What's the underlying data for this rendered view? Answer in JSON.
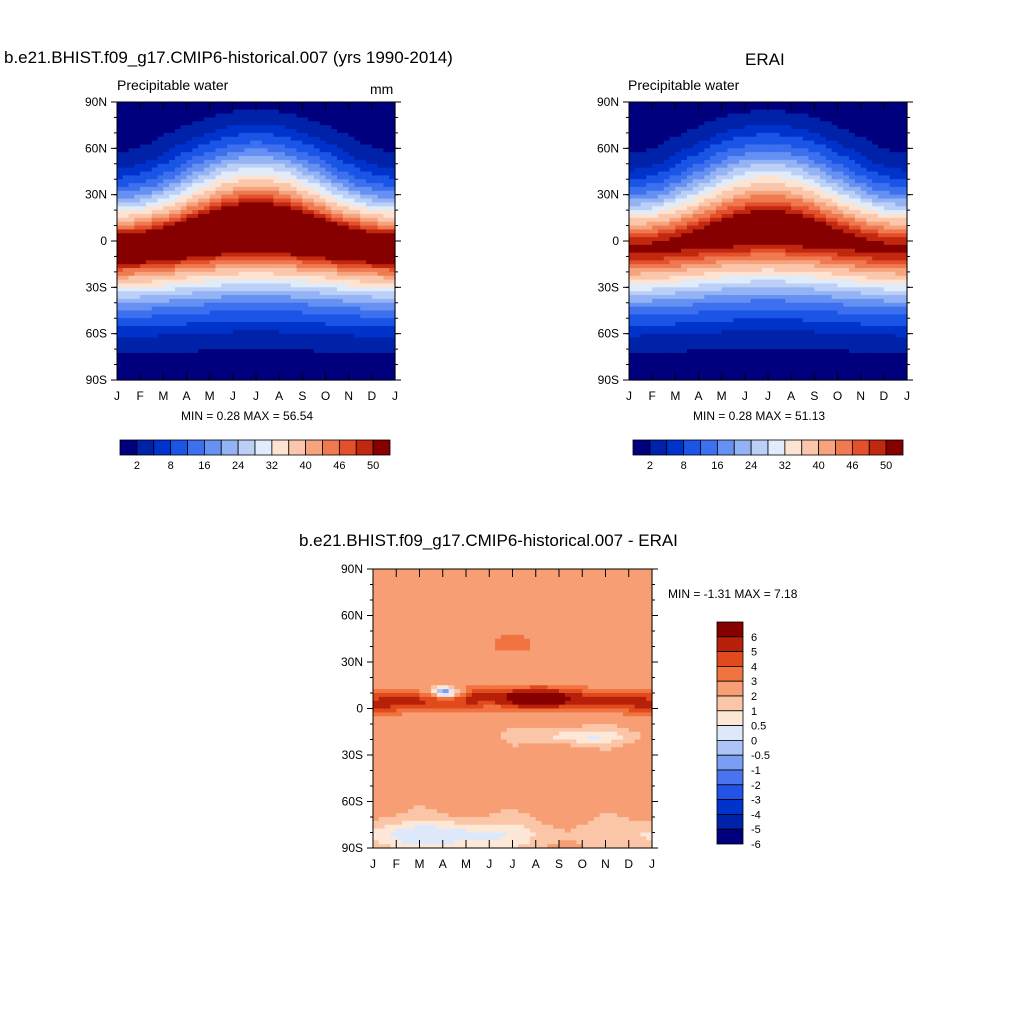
{
  "chart_data": [
    {
      "type": "heatmap",
      "title": "b.e21.BHIST.f09_g17.CMIP6-historical.007 (yrs 1990-2014)",
      "subtitle": "Precipitable water",
      "units": "mm",
      "x": [
        "J",
        "F",
        "M",
        "A",
        "M",
        "J",
        "J",
        "A",
        "S",
        "O",
        "N",
        "D",
        "J"
      ],
      "y_ticks": [
        "90N",
        "60N",
        "30N",
        "0",
        "30S",
        "60S",
        "90S"
      ],
      "ylim": [
        -90,
        90
      ],
      "stats": "MIN =   0.28 MAX =  56.54",
      "min": 0.28,
      "max": 56.54,
      "colorbar": {
        "orientation": "horizontal",
        "labels": [
          "2",
          "8",
          "16",
          "24",
          "32",
          "40",
          "46",
          "50"
        ]
      }
    },
    {
      "type": "heatmap",
      "title": "ERAI",
      "subtitle": "Precipitable water",
      "x": [
        "J",
        "F",
        "M",
        "A",
        "M",
        "J",
        "J",
        "A",
        "S",
        "O",
        "N",
        "D",
        "J"
      ],
      "y_ticks": [
        "90N",
        "60N",
        "30N",
        "0",
        "30S",
        "60S",
        "90S"
      ],
      "ylim": [
        -90,
        90
      ],
      "stats": "MIN =   0.28 MAX =  51.13",
      "min": 0.28,
      "max": 51.13,
      "colorbar": {
        "orientation": "horizontal",
        "labels": [
          "2",
          "8",
          "16",
          "24",
          "32",
          "40",
          "46",
          "50"
        ]
      }
    },
    {
      "type": "heatmap",
      "title": "b.e21.BHIST.f09_g17.CMIP6-historical.007 - ERAI",
      "x": [
        "J",
        "F",
        "M",
        "A",
        "M",
        "J",
        "J",
        "A",
        "S",
        "O",
        "N",
        "D",
        "J"
      ],
      "y_ticks": [
        "90N",
        "60N",
        "30N",
        "0",
        "30S",
        "60S",
        "90S"
      ],
      "ylim": [
        -90,
        90
      ],
      "stats": "MIN =  -1.31 MAX =   7.18",
      "min": -1.31,
      "max": 7.18,
      "colorbar": {
        "orientation": "vertical",
        "labels": [
          "6",
          "5",
          "4",
          "3",
          "2",
          "1",
          "0.5",
          "0",
          "-0.5",
          "-1",
          "-2",
          "-3",
          "-4",
          "-5",
          "-6"
        ]
      }
    }
  ],
  "colors": {
    "pw_palette": [
      "#00007f",
      "#0022a8",
      "#0033cc",
      "#1a55e6",
      "#3d70ee",
      "#6691f2",
      "#94b3f5",
      "#bcd0f7",
      "#e0ecfa",
      "#fde3d2",
      "#fbc7ac",
      "#f6a37e",
      "#ef7a52",
      "#e3502b",
      "#c1280f",
      "#860000"
    ],
    "diff_palette": [
      "#00007f",
      "#0022a8",
      "#0033cc",
      "#2252e8",
      "#4a74ef",
      "#7a9ef3",
      "#adc5f6",
      "#dde9fb",
      "#fde8d8",
      "#fbc6a7",
      "#f79e74",
      "#f1733f",
      "#e04a1c",
      "#b72009",
      "#860000"
    ]
  }
}
